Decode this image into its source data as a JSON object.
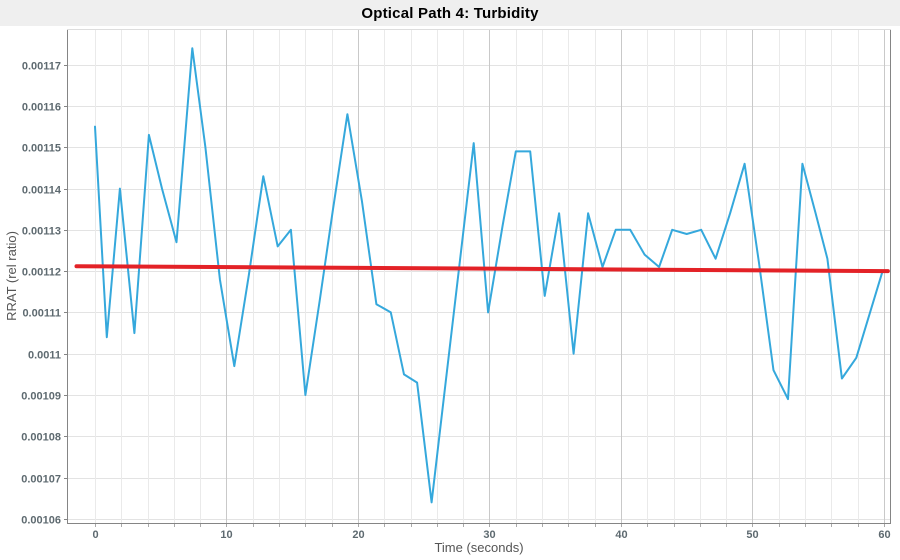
{
  "header": {
    "title": "Optical Path 4: Turbidity"
  },
  "chart_data": {
    "type": "line",
    "title": "Optical Path 4: Turbidity",
    "xlabel": "Time (seconds)",
    "ylabel": "RRAT (rel ratio)",
    "xlim": [
      -2.05,
      60.46
    ],
    "ylim": [
      0.001059,
      0.0011784
    ],
    "grid_on": true,
    "legend_position": "none",
    "x_major_ticks": [
      {
        "v": 0,
        "label": "0"
      },
      {
        "v": 10,
        "label": "10"
      },
      {
        "v": 20,
        "label": "20"
      },
      {
        "v": 30,
        "label": "30"
      },
      {
        "v": 40,
        "label": "40"
      },
      {
        "v": 50,
        "label": "50"
      },
      {
        "v": 60,
        "label": "60"
      }
    ],
    "x_minor_step": 2,
    "y_ticks": [
      {
        "v": 0.00106,
        "label": "0.00106"
      },
      {
        "v": 0.00107,
        "label": "0.00107"
      },
      {
        "v": 0.00108,
        "label": "0.00108"
      },
      {
        "v": 0.00109,
        "label": "0.00109"
      },
      {
        "v": 0.0011,
        "label": "0.0011"
      },
      {
        "v": 0.00111,
        "label": "0.00111"
      },
      {
        "v": 0.00112,
        "label": "0.00112"
      },
      {
        "v": 0.00113,
        "label": "0.00113"
      },
      {
        "v": 0.00114,
        "label": "0.00114"
      },
      {
        "v": 0.00115,
        "label": "0.00115"
      },
      {
        "v": 0.00116,
        "label": "0.00116"
      },
      {
        "v": 0.00117,
        "label": "0.00117"
      }
    ],
    "colors": {
      "series_blue": "#35a8dc",
      "trend_red": "#e32227",
      "grid_minor": "#eaeaea",
      "grid_major": "#c9c9c9",
      "grid_horizontal": "#e3e3e3",
      "spine": "#858585",
      "spine_top": "#dddddd",
      "title_band": "#efefef",
      "tick_text": "#5e6a70",
      "axis_text": "#555555"
    },
    "series": [
      {
        "name": "rrat-signal",
        "color": "#35a8dc",
        "width": 2,
        "points": [
          [
            0.0,
            0.001155
          ],
          [
            0.9,
            0.001104
          ],
          [
            1.9,
            0.00114
          ],
          [
            3.0,
            0.001105
          ],
          [
            4.1,
            0.001153
          ],
          [
            5.1,
            0.00114
          ],
          [
            6.2,
            0.001127
          ],
          [
            7.4,
            0.001174
          ],
          [
            8.4,
            0.00115
          ],
          [
            9.5,
            0.001118
          ],
          [
            10.6,
            0.001097
          ],
          [
            11.7,
            0.001119
          ],
          [
            12.8,
            0.001143
          ],
          [
            13.9,
            0.001126
          ],
          [
            14.9,
            0.00113
          ],
          [
            16.0,
            0.00109
          ],
          [
            17.1,
            0.001113
          ],
          [
            18.1,
            0.001135
          ],
          [
            19.2,
            0.001158
          ],
          [
            20.3,
            0.001137
          ],
          [
            21.4,
            0.001112
          ],
          [
            22.5,
            0.00111
          ],
          [
            23.5,
            0.001095
          ],
          [
            24.5,
            0.001093
          ],
          [
            25.6,
            0.001064
          ],
          [
            26.7,
            0.001094
          ],
          [
            27.7,
            0.001121
          ],
          [
            28.8,
            0.001151
          ],
          [
            29.9,
            0.00111
          ],
          [
            31.0,
            0.001131
          ],
          [
            32.0,
            0.001149
          ],
          [
            33.1,
            0.001149
          ],
          [
            34.2,
            0.001114
          ],
          [
            35.3,
            0.001134
          ],
          [
            36.4,
            0.0011
          ],
          [
            37.5,
            0.001134
          ],
          [
            38.6,
            0.001121
          ],
          [
            39.6,
            0.00113
          ],
          [
            40.7,
            0.00113
          ],
          [
            41.8,
            0.001124
          ],
          [
            42.9,
            0.001121
          ],
          [
            43.9,
            0.00113
          ],
          [
            45.0,
            0.001129
          ],
          [
            46.1,
            0.00113
          ],
          [
            47.2,
            0.001123
          ],
          [
            48.3,
            0.001134
          ],
          [
            49.4,
            0.001146
          ],
          [
            50.5,
            0.001122
          ],
          [
            51.6,
            0.001096
          ],
          [
            52.7,
            0.001089
          ],
          [
            53.8,
            0.001146
          ],
          [
            54.8,
            0.001134
          ],
          [
            55.7,
            0.001123
          ],
          [
            56.8,
            0.001094
          ],
          [
            57.9,
            0.001099
          ],
          [
            59.9,
            0.00112
          ]
        ]
      },
      {
        "name": "trend-line",
        "color": "#e32227",
        "width": 4,
        "points": [
          [
            -1.4,
            0.0011212
          ],
          [
            60.3,
            0.00112
          ]
        ]
      }
    ]
  }
}
